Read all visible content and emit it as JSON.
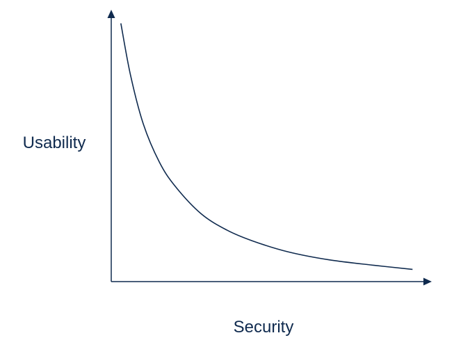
{
  "chart_data": {
    "type": "line",
    "title": "",
    "xlabel": "Security",
    "ylabel": "Usability",
    "xticks": false,
    "yticks": false,
    "grid": false,
    "legend": "none",
    "xlim": [
      0,
      100
    ],
    "ylim": [
      0,
      100
    ],
    "series": [
      {
        "x": [
          3,
          6,
          10,
          15,
          20,
          28,
          36,
          44,
          55,
          68,
          82,
          94
        ],
        "y": [
          95,
          76,
          58,
          44,
          35,
          25,
          19,
          15,
          11,
          8,
          6,
          4.5
        ]
      }
    ],
    "colors": {
      "axis": "#0f2a4e",
      "curve": "#0f2a4e",
      "label": "#0f2a4e"
    }
  }
}
